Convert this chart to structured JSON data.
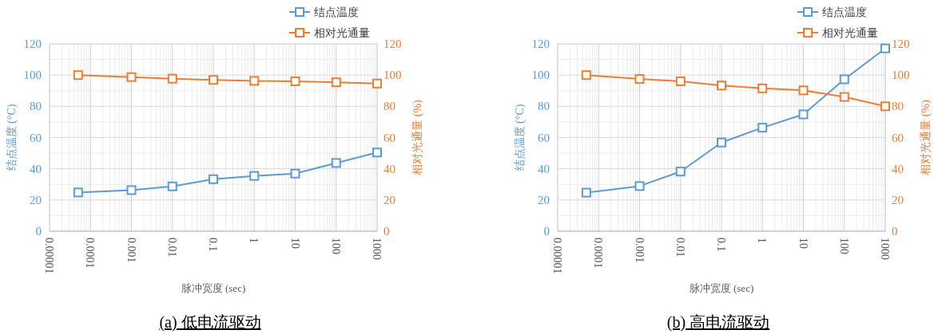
{
  "chart_data": [
    {
      "type": "line",
      "title": "(a) 低电流驱动",
      "xlabel": "脉冲宽度 (sec)",
      "ylabel": "结点温度 (°C)",
      "y2label": "相对光通量 (%)",
      "log": "x",
      "grid": true,
      "legend": "top right",
      "marker": "square",
      "line_style": "solid",
      "x": [
        5e-05,
        0.001,
        0.01,
        0.1,
        1,
        10,
        100,
        1000
      ],
      "xlim": [
        1e-05,
        1000
      ],
      "xticks": [
        {
          "value": 1e-05,
          "label": "0.00001"
        },
        0.0001,
        0.001,
        0.01,
        0.1,
        1,
        10,
        100,
        1000
      ],
      "ylim": [
        0,
        120
      ],
      "yticks": [
        0,
        20,
        40,
        60,
        80,
        100,
        120
      ],
      "y2lim": [
        0,
        120
      ],
      "y2ticks": [
        0,
        20,
        40,
        60,
        80,
        100,
        120
      ],
      "series": [
        {
          "name": "结点温度",
          "color": "#5b9bd5",
          "values": [
            24.8,
            26.3,
            28.7,
            33.3,
            35.4,
            36.9,
            43.7,
            50.4
          ]
        },
        {
          "name": "相对光通量",
          "color": "#ed7d31",
          "axis": "y2",
          "values": [
            100,
            98.7,
            97.7,
            96.9,
            96.3,
            96,
            95.4,
            94.6
          ]
        }
      ]
    },
    {
      "type": "line",
      "title": "(b) 高电流驱动",
      "xlabel": "脉冲宽度 (sec)",
      "ylabel": "结点温度 (°C)",
      "y2label": "相对光通量 (%)",
      "log": "x",
      "grid": true,
      "legend": "top right",
      "marker": "square",
      "line_style": "solid",
      "x": [
        5e-05,
        0.001,
        0.01,
        0.1,
        1,
        10,
        100,
        1000
      ],
      "xlim": [
        1e-05,
        1000
      ],
      "xticks": [
        {
          "value": 1e-05,
          "label": "0.00001"
        },
        0.0001,
        0.001,
        0.01,
        0.1,
        1,
        10,
        100,
        1000
      ],
      "ylim": [
        0,
        120
      ],
      "yticks": [
        0,
        20,
        40,
        60,
        80,
        100,
        120
      ],
      "y2lim": [
        0,
        120
      ],
      "y2ticks": [
        0,
        20,
        40,
        60,
        80,
        100,
        120
      ],
      "series": [
        {
          "name": "结点温度",
          "color": "#5b9bd5",
          "values": [
            24.7,
            28.9,
            38.2,
            56.8,
            66.3,
            74.8,
            97.3,
            117.1
          ]
        },
        {
          "name": "相对光通量",
          "color": "#ed7d31",
          "axis": "y2",
          "values": [
            100,
            97.5,
            96,
            93.3,
            91.5,
            90.2,
            86,
            80
          ]
        }
      ]
    }
  ]
}
